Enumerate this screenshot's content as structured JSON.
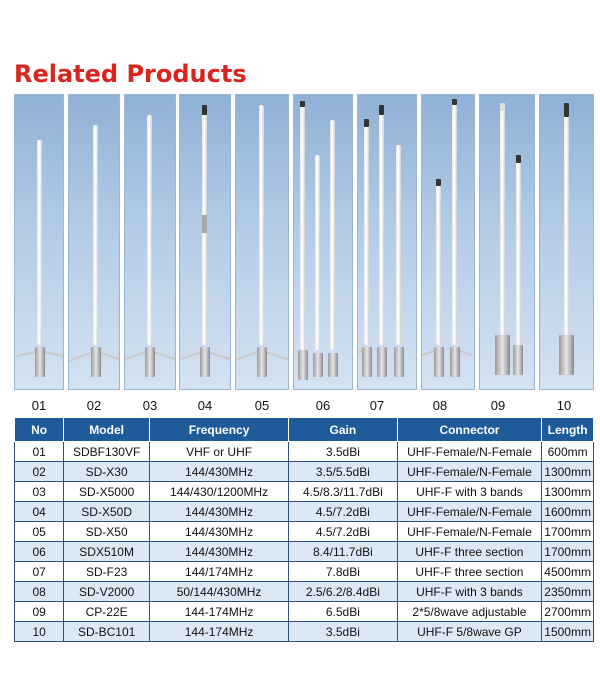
{
  "title": "Related Products",
  "image_numbers": [
    "01",
    "02",
    "03",
    "04",
    "05",
    "06",
    "07",
    "08",
    "09",
    "10"
  ],
  "table": {
    "headers": [
      "No",
      "Model",
      "Frequency",
      "Gain",
      "Connector",
      "Length"
    ],
    "rows": [
      [
        "01",
        "SDBF130VF",
        "VHF or UHF",
        "3.5dBi",
        "UHF-Female/N-Female",
        "600mm"
      ],
      [
        "02",
        "SD-X30",
        "144/430MHz",
        "3.5/5.5dBi",
        "UHF-Female/N-Female",
        "1300mm"
      ],
      [
        "03",
        "SD-X5000",
        "144/430/1200MHz",
        "4.5/8.3/11.7dBi",
        "UHF-F with 3 bands",
        "1300mm"
      ],
      [
        "04",
        "SD-X50D",
        "144/430MHz",
        "4.5/7.2dBi",
        "UHF-Female/N-Female",
        "1600mm"
      ],
      [
        "05",
        "SD-X50",
        "144/430MHz",
        "4.5/7.2dBi",
        "UHF-Female/N-Female",
        "1700mm"
      ],
      [
        "06",
        "SDX510M",
        "144/430MHz",
        "8.4/11.7dBi",
        "UHF-F three section",
        "1700mm"
      ],
      [
        "07",
        "SD-F23",
        "144/174MHz",
        "7.8dBi",
        "UHF-F three section",
        "4500mm"
      ],
      [
        "08",
        "SD-V2000",
        "50/144/430MHz",
        "2.5/6.2/8.4dBi",
        "UHF-F with 3 bands",
        "2350mm"
      ],
      [
        "09",
        "CP-22E",
        "144-174MHz",
        "6.5dBi",
        "2*5/8wave adjustable",
        "2700mm"
      ],
      [
        "10",
        "SD-BC101",
        "144-174MHz",
        "3.5dBi",
        "UHF-F 5/8wave GP",
        "1500mm"
      ]
    ]
  },
  "colors": {
    "title": "#d8251f",
    "header_bg": "#1f5a99",
    "row_alt": "#dde8f5",
    "panel": "#b3cbe6"
  }
}
